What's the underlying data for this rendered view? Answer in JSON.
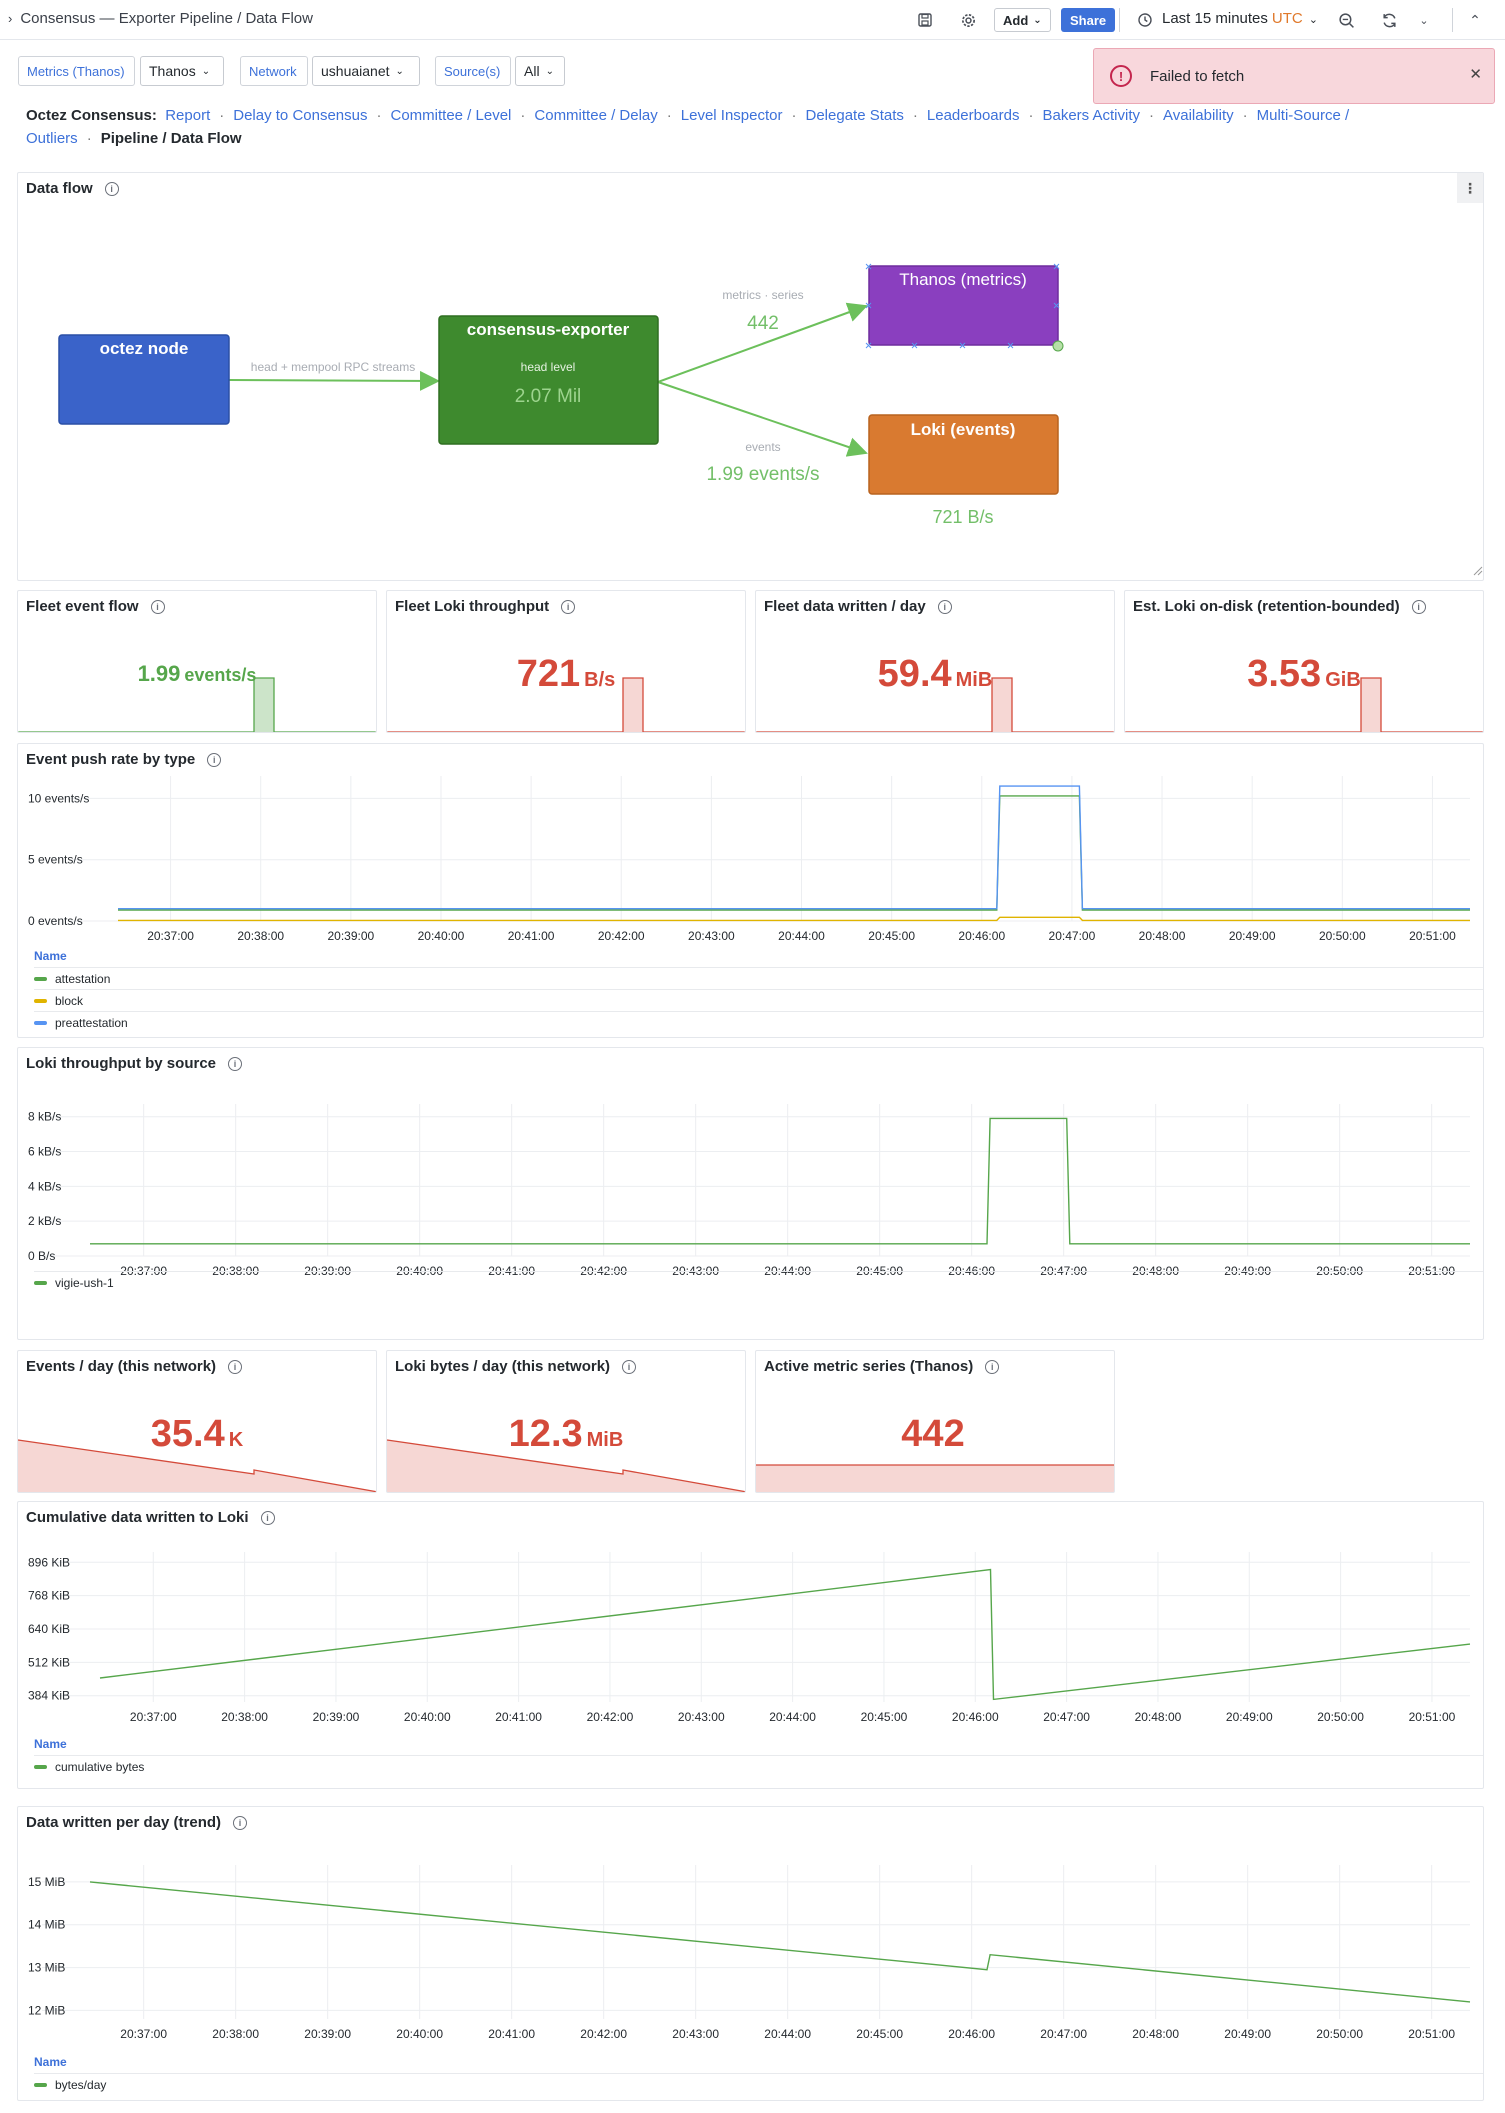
{
  "topbar": {
    "breadcrumb": "Consensus — Exporter Pipeline / Data Flow",
    "add_label": "Add",
    "share_label": "Share",
    "time_range": "Last 15 minutes",
    "timezone": "UTC"
  },
  "variables": [
    {
      "label": "Metrics (Thanos)",
      "value": "Thanos"
    },
    {
      "label": "Network",
      "value": "ushuaianet"
    },
    {
      "label": "Source(s)",
      "value": "All"
    }
  ],
  "toast": {
    "message": "Failed to fetch"
  },
  "links": {
    "lead": "Octez Consensus:",
    "items": [
      "Report",
      "Delay to Consensus",
      "Committee / Level",
      "Committee / Delay",
      "Level Inspector",
      "Delegate Stats",
      "Leaderboards",
      "Bakers Activity",
      "Availability",
      "Multi-Source / Outliers"
    ],
    "current": "Pipeline / Data Flow"
  },
  "dataflow": {
    "title": "Data flow",
    "nodes": {
      "octez": {
        "label": "octez node",
        "color": "#3a63c9"
      },
      "exporter": {
        "label": "consensus-exporter",
        "sub": "head level",
        "value": "2.07 Mil",
        "color": "#3e8a2e"
      },
      "thanos": {
        "label": "Thanos (metrics)",
        "color": "#8a3fbf"
      },
      "loki": {
        "label": "Loki (events)",
        "color": "#d97a30"
      }
    },
    "edges": {
      "rpc": "head + mempool RPC streams",
      "metrics_label": "metrics · series",
      "metrics_value": "442",
      "events_label": "events",
      "events_value": "1.99 events/s",
      "loki_value": "721 B/s"
    }
  },
  "stats_row1": [
    {
      "title": "Fleet event flow",
      "value": "1.99",
      "unit": "events/s",
      "color": "#56a64b"
    },
    {
      "title": "Fleet Loki throughput",
      "value": "721",
      "unit": "B/s",
      "color": "#d44a3a"
    },
    {
      "title": "Fleet data written / day",
      "value": "59.4",
      "unit": "MiB",
      "color": "#d44a3a"
    },
    {
      "title": "Est. Loki on-disk (retention-bounded)",
      "value": "3.53",
      "unit": "GiB",
      "color": "#d44a3a"
    }
  ],
  "stats_row2": [
    {
      "title": "Events / day (this network)",
      "value": "35.4",
      "unit": "K",
      "color": "#d44a3a"
    },
    {
      "title": "Loki bytes / day (this network)",
      "value": "12.3",
      "unit": "MiB",
      "color": "#d44a3a"
    },
    {
      "title": "Active metric series (Thanos)",
      "value": "442",
      "unit": "",
      "color": "#d44a3a"
    }
  ],
  "times": [
    "20:37:00",
    "20:38:00",
    "20:39:00",
    "20:40:00",
    "20:41:00",
    "20:42:00",
    "20:43:00",
    "20:44:00",
    "20:45:00",
    "20:46:00",
    "20:47:00",
    "20:48:00",
    "20:49:00",
    "20:50:00",
    "20:51:00"
  ],
  "legend_header": "Name",
  "chart_data": [
    {
      "title": "Event push rate by type",
      "type": "line",
      "ylabel": "events/s",
      "yticks": [
        "10 events/s",
        "5 events/s",
        "0 events/s"
      ],
      "ylim": [
        0,
        11.5
      ],
      "x": [
        "20:36:25",
        "20:46:10",
        "20:46:12",
        "20:47:05",
        "20:47:07",
        "20:51:25"
      ],
      "series": [
        {
          "name": "attestation",
          "color": "#56a64b",
          "values": [
            0.9,
            0.9,
            10.2,
            10.2,
            0.9,
            0.9
          ]
        },
        {
          "name": "block",
          "color": "#e0b400",
          "values": [
            0.05,
            0.05,
            0.3,
            0.3,
            0.05,
            0.05
          ]
        },
        {
          "name": "preattestation",
          "color": "#5794f2",
          "values": [
            1.0,
            1.0,
            11.0,
            11.0,
            1.0,
            1.0
          ]
        }
      ]
    },
    {
      "title": "Loki throughput by source",
      "type": "line",
      "yticks": [
        "8 kB/s",
        "6 kB/s",
        "4 kB/s",
        "2 kB/s",
        "0 B/s"
      ],
      "ylim": [
        0,
        8.5
      ],
      "x": [
        "20:36:25",
        "20:46:10",
        "20:46:12",
        "20:47:02",
        "20:47:04",
        "20:51:25"
      ],
      "series": [
        {
          "name": "vigie-ush-1",
          "color": "#56a64b",
          "values": [
            0.7,
            0.7,
            7.9,
            7.9,
            0.7,
            0.7
          ]
        }
      ]
    },
    {
      "title": "Cumulative data written to Loki",
      "type": "line",
      "yticks": [
        "896 KiB",
        "768 KiB",
        "640 KiB",
        "512 KiB",
        "384 KiB"
      ],
      "ylim": [
        360,
        920
      ],
      "x": [
        "20:36:25",
        "20:46:10",
        "20:46:12",
        "20:51:25"
      ],
      "series": [
        {
          "name": "cumulative bytes",
          "color": "#56a64b",
          "values": [
            452,
            868,
            370,
            582
          ]
        }
      ]
    },
    {
      "title": "Data written per day (trend)",
      "type": "line",
      "yticks": [
        "15 MiB",
        "14 MiB",
        "13 MiB",
        "12 MiB"
      ],
      "ylim": [
        11.8,
        15.3
      ],
      "x": [
        "20:36:25",
        "20:46:10",
        "20:46:12",
        "20:51:25"
      ],
      "series": [
        {
          "name": "bytes/day",
          "color": "#56a64b",
          "values": [
            15.0,
            12.95,
            13.3,
            12.2
          ]
        }
      ]
    }
  ]
}
